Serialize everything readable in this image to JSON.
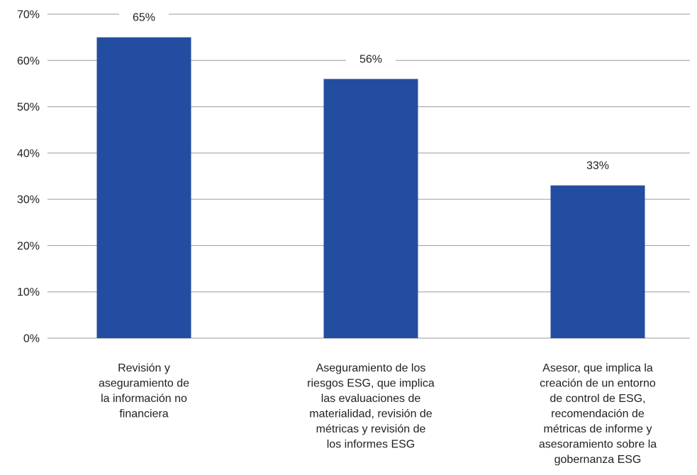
{
  "chart_data": {
    "type": "bar",
    "categories": [
      [
        "Revisión y",
        "aseguramiento de",
        "la información no",
        "financiera"
      ],
      [
        "Aseguramiento de los",
        "riesgos ESG, que implica",
        "las evaluaciones de",
        "materialidad, revisión de",
        "métricas y revisión de",
        "los informes ESG"
      ],
      [
        "Asesor, que implica la",
        "creación de un entorno",
        "de control de ESG,",
        "recomendación de",
        "métricas de informe y",
        "asesoramiento sobre la",
        "gobernanza ESG"
      ]
    ],
    "values": [
      65,
      56,
      33
    ],
    "data_labels": [
      "65%",
      "56%",
      "33%"
    ],
    "yticks": [
      0,
      10,
      20,
      30,
      40,
      50,
      60,
      70
    ],
    "ytick_labels": [
      "0%",
      "10%",
      "20%",
      "30%",
      "40%",
      "50%",
      "60%",
      "70%"
    ],
    "ylim": [
      0,
      70
    ],
    "grid": true,
    "bar_color": "#234da0",
    "title": "",
    "xlabel": "",
    "ylabel": ""
  }
}
